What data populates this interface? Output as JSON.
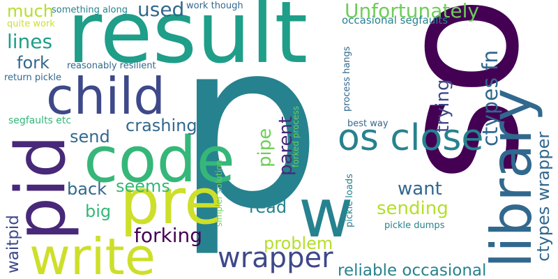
{
  "palette": {
    "background": "#ffffff",
    "dark_purple": "#440154",
    "purple": "#482878",
    "indigo": "#3e4989",
    "blue": "#31688e",
    "teal": "#26828e",
    "teal_green": "#1f9e89",
    "green": "#35b779",
    "light_green": "#6ece58",
    "lime": "#b5de2b",
    "yellow": "#cddf2a"
  },
  "words": [
    {
      "text": "p",
      "color": "#26828e"
    },
    {
      "text": "os",
      "color": "#440154"
    },
    {
      "text": "result",
      "color": "#1f9e89"
    },
    {
      "text": "library",
      "color": "#31688e"
    },
    {
      "text": "code",
      "color": "#35b779"
    },
    {
      "text": "child",
      "color": "#3e4989"
    },
    {
      "text": "pid",
      "color": "#482878"
    },
    {
      "text": "pre",
      "color": "#cddf2a"
    },
    {
      "text": "write",
      "color": "#cddf2a"
    },
    {
      "text": "w",
      "color": "#26828e"
    },
    {
      "text": "os close",
      "color": "#26828e"
    },
    {
      "text": "wrapper",
      "color": "#3e4989"
    },
    {
      "text": "Unfortunately",
      "color": "#6ece58"
    },
    {
      "text": "ctypes fn",
      "color": "#31688e"
    },
    {
      "text": "ctypes wrapper",
      "color": "#31688e"
    },
    {
      "text": "used",
      "color": "#31688e"
    },
    {
      "text": "much",
      "color": "#b5de2b"
    },
    {
      "text": "lines",
      "color": "#1f9e89"
    },
    {
      "text": "fork",
      "color": "#31688e"
    },
    {
      "text": "crashing",
      "color": "#31688e"
    },
    {
      "text": "send",
      "color": "#31688e"
    },
    {
      "text": "back",
      "color": "#31688e"
    },
    {
      "text": "seems",
      "color": "#35b779"
    },
    {
      "text": "big",
      "color": "#35b779"
    },
    {
      "text": "forking",
      "color": "#440154"
    },
    {
      "text": "trying",
      "color": "#3e4989"
    },
    {
      "text": "want",
      "color": "#31688e"
    },
    {
      "text": "sending",
      "color": "#b5de2b"
    },
    {
      "text": "parent",
      "color": "#482878"
    },
    {
      "text": "pipe",
      "color": "#6ece58"
    },
    {
      "text": "read",
      "color": "#26828e"
    },
    {
      "text": "problem",
      "color": "#b5de2b"
    },
    {
      "text": "reliable occasional",
      "color": "#26828e"
    },
    {
      "text": "waitpid",
      "color": "#3e4989"
    },
    {
      "text": "occasional segfaults",
      "color": "#26828e"
    },
    {
      "text": "something along",
      "color": "#26828e"
    },
    {
      "text": "work though",
      "color": "#31688e"
    },
    {
      "text": "quite work",
      "color": "#cddf2a"
    },
    {
      "text": "reasonably resilient",
      "color": "#31688e"
    },
    {
      "text": "return pickle",
      "color": "#31688e"
    },
    {
      "text": "segfaults etc",
      "color": "#35b779"
    },
    {
      "text": "process hangs",
      "color": "#31688e"
    },
    {
      "text": "best way",
      "color": "#31688e"
    },
    {
      "text": "simpler solution",
      "color": "#6ece58"
    },
    {
      "text": "forked process",
      "color": "#6ece58"
    },
    {
      "text": "pickle loads",
      "color": "#26828e"
    },
    {
      "text": "pickle dumps",
      "color": "#26828e"
    }
  ]
}
